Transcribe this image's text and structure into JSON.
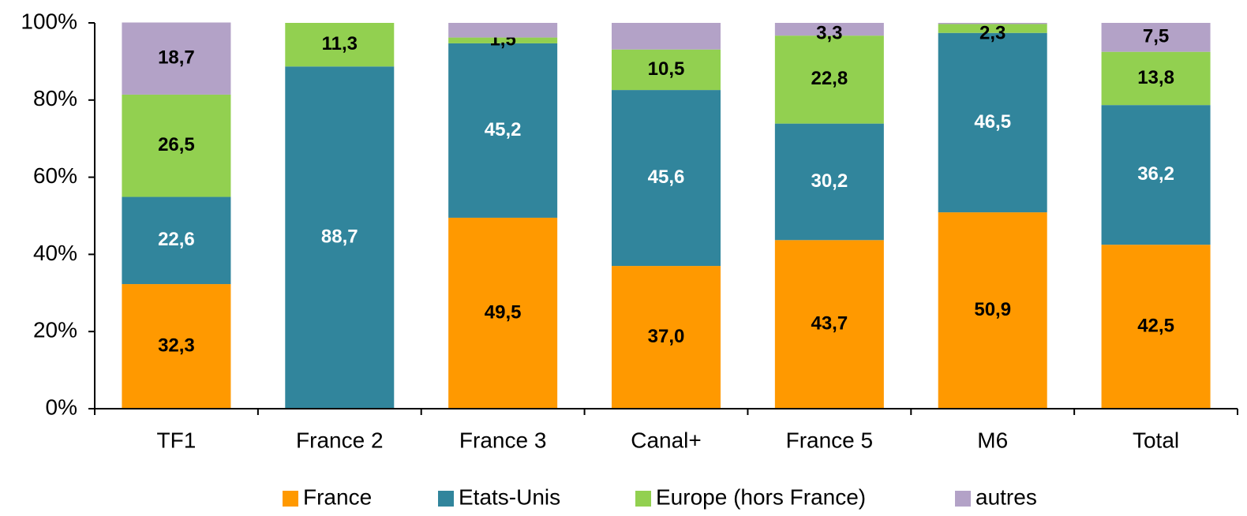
{
  "chart_data": {
    "type": "stacked_bar",
    "categories": [
      "TF1",
      "France 2",
      "France 3",
      "Canal+",
      "France 5",
      "M6",
      "Total"
    ],
    "series": [
      {
        "name": "France",
        "color": "#ff9900",
        "label_color": "#000000",
        "values": [
          32.3,
          0,
          49.5,
          37.0,
          43.7,
          50.9,
          42.5
        ],
        "value_labels": [
          "32,3",
          null,
          "49,5",
          "37,0",
          "43,7",
          "50,9",
          "42,5"
        ]
      },
      {
        "name": "Etats-Unis",
        "color": "#31859c",
        "label_color": "#ffffff",
        "values": [
          22.6,
          88.7,
          45.2,
          45.6,
          30.2,
          46.5,
          36.2
        ],
        "value_labels": [
          "22,6",
          "88,7",
          "45,2",
          "45,6",
          "30,2",
          "46,5",
          "36,2"
        ]
      },
      {
        "name": "Europe (hors France)",
        "color": "#92d050",
        "label_color": "#000000",
        "values": [
          26.5,
          11.3,
          1.5,
          10.5,
          22.8,
          2.3,
          13.8
        ],
        "value_labels": [
          "26,5",
          "11,3",
          "1,5",
          "10,5",
          "22,8",
          "2,3",
          "13,8"
        ]
      },
      {
        "name": "autres",
        "color": "#b3a2c7",
        "label_color": "#000000",
        "values": [
          18.7,
          0,
          3.8,
          6.9,
          3.3,
          0.3,
          7.5
        ],
        "value_labels": [
          "18,7",
          null,
          null,
          null,
          "3,3",
          null,
          "7,5"
        ]
      }
    ],
    "ylim": [
      0,
      100
    ],
    "yticks": [
      {
        "value": 0,
        "label": "0%"
      },
      {
        "value": 20,
        "label": "20%"
      },
      {
        "value": 40,
        "label": "40%"
      },
      {
        "value": 60,
        "label": "60%"
      },
      {
        "value": 80,
        "label": "80%"
      },
      {
        "value": 100,
        "label": "100%"
      }
    ],
    "grid": false,
    "legend": "bottom"
  }
}
